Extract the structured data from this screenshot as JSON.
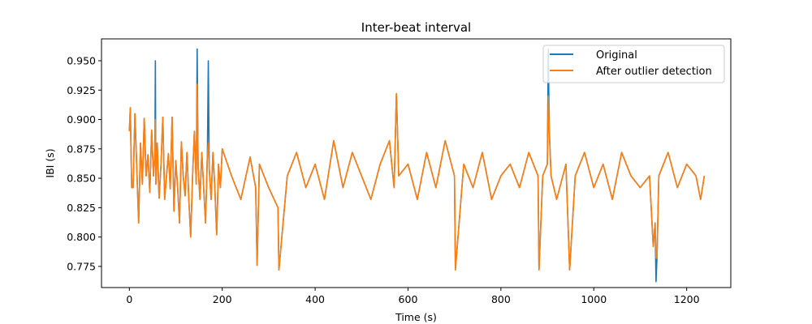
{
  "chart_data": {
    "type": "line",
    "title": "Inter-beat interval",
    "xlabel": "Time (s)",
    "ylabel": "IBI (s)",
    "xlim": [
      -60,
      1295
    ],
    "ylim": [
      0.757,
      0.9686
    ],
    "xticks": [
      0,
      200,
      400,
      600,
      800,
      1000,
      1200
    ],
    "yticks": [
      0.775,
      0.8,
      0.825,
      0.85,
      0.875,
      0.9,
      0.925,
      0.95
    ],
    "xtick_labels": [
      "0",
      "200",
      "400",
      "600",
      "800",
      "1000",
      "1200"
    ],
    "ytick_labels": [
      "0.775",
      "0.800",
      "0.825",
      "0.850",
      "0.875",
      "0.900",
      "0.925",
      "0.950"
    ],
    "grid": false,
    "legend_position": "top-right",
    "series": [
      {
        "name": "Original",
        "color": "#1f77b4",
        "x": [
          0,
          2,
          5,
          8,
          12,
          16,
          20,
          24,
          28,
          32,
          36,
          40,
          44,
          48,
          52,
          55,
          56,
          57,
          60,
          64,
          68,
          72,
          76,
          80,
          84,
          88,
          92,
          96,
          100,
          104,
          108,
          112,
          116,
          120,
          124,
          128,
          132,
          136,
          140,
          144,
          146,
          148,
          152,
          156,
          160,
          164,
          168,
          170,
          172,
          176,
          180,
          184,
          188,
          192,
          196,
          200,
          220,
          240,
          260,
          272,
          275,
          280,
          300,
          320,
          322,
          340,
          360,
          380,
          400,
          420,
          440,
          460,
          480,
          500,
          520,
          540,
          560,
          570,
          575,
          580,
          600,
          620,
          640,
          660,
          680,
          700,
          702,
          720,
          740,
          760,
          780,
          800,
          820,
          840,
          860,
          880,
          882,
          890,
          900,
          902,
          904,
          908,
          920,
          940,
          948,
          960,
          980,
          1000,
          1020,
          1040,
          1060,
          1080,
          1100,
          1120,
          1128,
          1132,
          1134,
          1136,
          1140,
          1160,
          1180,
          1200,
          1220,
          1230,
          1238
        ],
        "y": [
          0.89,
          0.91,
          0.842,
          0.842,
          0.905,
          0.858,
          0.812,
          0.88,
          0.845,
          0.901,
          0.852,
          0.87,
          0.838,
          0.891,
          0.852,
          0.87,
          0.95,
          0.845,
          0.88,
          0.833,
          0.861,
          0.902,
          0.832,
          0.852,
          0.871,
          0.841,
          0.902,
          0.822,
          0.865,
          0.842,
          0.812,
          0.881,
          0.852,
          0.835,
          0.872,
          0.832,
          0.8,
          0.851,
          0.89,
          0.845,
          0.96,
          0.86,
          0.832,
          0.872,
          0.842,
          0.812,
          0.87,
          0.95,
          0.858,
          0.832,
          0.872,
          0.842,
          0.802,
          0.862,
          0.842,
          0.875,
          0.852,
          0.832,
          0.868,
          0.842,
          0.776,
          0.862,
          0.842,
          0.825,
          0.772,
          0.852,
          0.872,
          0.842,
          0.862,
          0.832,
          0.882,
          0.842,
          0.872,
          0.852,
          0.832,
          0.862,
          0.882,
          0.842,
          0.922,
          0.852,
          0.862,
          0.832,
          0.872,
          0.842,
          0.882,
          0.852,
          0.772,
          0.862,
          0.842,
          0.872,
          0.832,
          0.852,
          0.862,
          0.842,
          0.872,
          0.852,
          0.772,
          0.852,
          0.862,
          0.96,
          0.892,
          0.852,
          0.832,
          0.862,
          0.772,
          0.852,
          0.872,
          0.842,
          0.862,
          0.832,
          0.872,
          0.852,
          0.842,
          0.852,
          0.792,
          0.812,
          0.762,
          0.782,
          0.852,
          0.872,
          0.842,
          0.862,
          0.852,
          0.832,
          0.852
        ]
      },
      {
        "name": "After outlier detection",
        "color": "#ff7f0e",
        "x": [
          0,
          2,
          5,
          8,
          12,
          16,
          20,
          24,
          28,
          32,
          36,
          40,
          44,
          48,
          52,
          55,
          56,
          57,
          60,
          64,
          68,
          72,
          76,
          80,
          84,
          88,
          92,
          96,
          100,
          104,
          108,
          112,
          116,
          120,
          124,
          128,
          132,
          136,
          140,
          144,
          146,
          148,
          152,
          156,
          160,
          164,
          168,
          170,
          172,
          176,
          180,
          184,
          188,
          192,
          196,
          200,
          220,
          240,
          260,
          272,
          275,
          280,
          300,
          320,
          322,
          340,
          360,
          380,
          400,
          420,
          440,
          460,
          480,
          500,
          520,
          540,
          560,
          570,
          575,
          580,
          600,
          620,
          640,
          660,
          680,
          700,
          702,
          720,
          740,
          760,
          780,
          800,
          820,
          840,
          860,
          880,
          882,
          890,
          900,
          902,
          904,
          908,
          920,
          940,
          948,
          960,
          980,
          1000,
          1020,
          1040,
          1060,
          1080,
          1100,
          1120,
          1128,
          1132,
          1134,
          1136,
          1140,
          1160,
          1180,
          1200,
          1220,
          1230,
          1238
        ],
        "y": [
          0.89,
          0.91,
          0.842,
          0.842,
          0.905,
          0.858,
          0.812,
          0.88,
          0.845,
          0.901,
          0.852,
          0.87,
          0.838,
          0.891,
          0.852,
          0.87,
          0.9,
          0.845,
          0.88,
          0.833,
          0.861,
          0.902,
          0.832,
          0.852,
          0.871,
          0.841,
          0.902,
          0.822,
          0.865,
          0.842,
          0.812,
          0.881,
          0.852,
          0.835,
          0.872,
          0.832,
          0.8,
          0.851,
          0.89,
          0.845,
          0.93,
          0.86,
          0.832,
          0.872,
          0.842,
          0.812,
          0.87,
          0.88,
          0.858,
          0.832,
          0.872,
          0.842,
          0.802,
          0.862,
          0.842,
          0.875,
          0.852,
          0.832,
          0.868,
          0.842,
          0.776,
          0.862,
          0.842,
          0.825,
          0.772,
          0.852,
          0.872,
          0.842,
          0.862,
          0.832,
          0.882,
          0.842,
          0.872,
          0.852,
          0.832,
          0.862,
          0.882,
          0.842,
          0.922,
          0.852,
          0.862,
          0.832,
          0.872,
          0.842,
          0.882,
          0.852,
          0.772,
          0.862,
          0.842,
          0.872,
          0.832,
          0.852,
          0.862,
          0.842,
          0.872,
          0.852,
          0.772,
          0.852,
          0.862,
          0.92,
          0.892,
          0.852,
          0.832,
          0.862,
          0.772,
          0.852,
          0.872,
          0.842,
          0.862,
          0.832,
          0.872,
          0.852,
          0.842,
          0.852,
          0.792,
          0.812,
          0.782,
          0.782,
          0.852,
          0.872,
          0.842,
          0.862,
          0.852,
          0.832,
          0.852
        ]
      }
    ]
  }
}
